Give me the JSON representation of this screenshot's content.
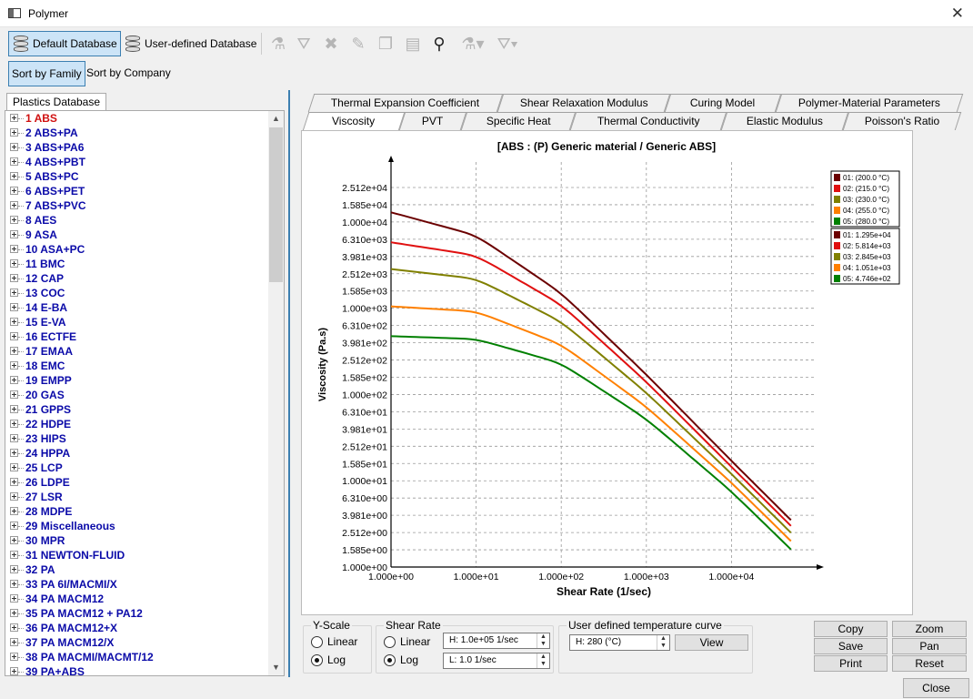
{
  "window": {
    "title": "Polymer"
  },
  "toolbar": {
    "default_db_label": "Default Database",
    "user_db_label": "User-defined Database"
  },
  "sort": {
    "by_family": "Sort by Family",
    "by_company": "Sort by Company"
  },
  "left_panel": {
    "tab_label": "Plastics Database",
    "items": [
      {
        "no": "1",
        "name": "ABS"
      },
      {
        "no": "2",
        "name": "ABS+PA"
      },
      {
        "no": "3",
        "name": "ABS+PA6"
      },
      {
        "no": "4",
        "name": "ABS+PBT"
      },
      {
        "no": "5",
        "name": "ABS+PC"
      },
      {
        "no": "6",
        "name": "ABS+PET"
      },
      {
        "no": "7",
        "name": "ABS+PVC"
      },
      {
        "no": "8",
        "name": "AES"
      },
      {
        "no": "9",
        "name": "ASA"
      },
      {
        "no": "10",
        "name": "ASA+PC"
      },
      {
        "no": "11",
        "name": "BMC"
      },
      {
        "no": "12",
        "name": "CAP"
      },
      {
        "no": "13",
        "name": "COC"
      },
      {
        "no": "14",
        "name": "E-BA"
      },
      {
        "no": "15",
        "name": "E-VA"
      },
      {
        "no": "16",
        "name": "ECTFE"
      },
      {
        "no": "17",
        "name": "EMAA"
      },
      {
        "no": "18",
        "name": "EMC"
      },
      {
        "no": "19",
        "name": "EMPP"
      },
      {
        "no": "20",
        "name": "GAS"
      },
      {
        "no": "21",
        "name": "GPPS"
      },
      {
        "no": "22",
        "name": "HDPE"
      },
      {
        "no": "23",
        "name": "HIPS"
      },
      {
        "no": "24",
        "name": "HPPA"
      },
      {
        "no": "25",
        "name": "LCP"
      },
      {
        "no": "26",
        "name": "LDPE"
      },
      {
        "no": "27",
        "name": "LSR"
      },
      {
        "no": "28",
        "name": "MDPE"
      },
      {
        "no": "29",
        "name": "Miscellaneous"
      },
      {
        "no": "30",
        "name": "MPR"
      },
      {
        "no": "31",
        "name": "NEWTON-FLUID"
      },
      {
        "no": "32",
        "name": "PA"
      },
      {
        "no": "33",
        "name": "PA 6I/MACMI/X"
      },
      {
        "no": "34",
        "name": "PA MACM12"
      },
      {
        "no": "35",
        "name": "PA MACM12 + PA12"
      },
      {
        "no": "36",
        "name": "PA MACM12+X"
      },
      {
        "no": "37",
        "name": "PA MACM12/X"
      },
      {
        "no": "38",
        "name": "PA MACMI/MACMT/12"
      },
      {
        "no": "39",
        "name": "PA+ABS"
      }
    ]
  },
  "tabs_row1": [
    "Thermal Expansion Coefficient",
    "Shear Relaxation Modulus",
    "Curing Model",
    "Polymer-Material Parameters"
  ],
  "tabs_row2": [
    "Viscosity",
    "PVT",
    "Specific Heat",
    "Thermal Conductivity",
    "Elastic Modulus",
    "Poisson's Ratio"
  ],
  "chart_data": {
    "type": "line",
    "title": "[ABS : (P)  Generic material  / Generic ABS]",
    "xlabel": "Shear Rate (1/sec)",
    "ylabel": "Viscosity (Pa.s)",
    "x_scale": "log",
    "y_scale": "log",
    "xlim": [
      1,
      100000
    ],
    "ylim": [
      1,
      25120
    ],
    "x_ticks": [
      "1.000e+00",
      "1.000e+01",
      "1.000e+02",
      "1.000e+03",
      "1.000e+04"
    ],
    "y_ticks": [
      "1.000e+00",
      "1.585e+00",
      "2.512e+00",
      "3.981e+00",
      "6.310e+00",
      "1.000e+01",
      "1.585e+01",
      "2.512e+01",
      "3.981e+01",
      "6.310e+01",
      "1.000e+02",
      "1.585e+02",
      "2.512e+02",
      "3.981e+02",
      "6.310e+02",
      "1.000e+03",
      "1.585e+03",
      "2.512e+03",
      "3.981e+03",
      "6.310e+03",
      "1.000e+04",
      "1.585e+04",
      "2.512e+04"
    ],
    "grid": true,
    "legend_position": "top-right",
    "x": [
      1,
      10,
      100,
      1000,
      10000,
      50000
    ],
    "series": [
      {
        "name": "01: (200.0 °C)",
        "color": "#6b0000",
        "zero_shear": "01: 1.295e+04",
        "values": [
          12950,
          7000,
          1500,
          170,
          17,
          3.5
        ]
      },
      {
        "name": "02: (215.0 °C)",
        "color": "#e01010",
        "zero_shear": "02: 5.814e+03",
        "values": [
          5814,
          4100,
          1100,
          140,
          14.5,
          3.0
        ]
      },
      {
        "name": "03: (230.0 °C)",
        "color": "#808000",
        "zero_shear": "03: 2.845e+03",
        "values": [
          2845,
          2200,
          700,
          105,
          12,
          2.5
        ]
      },
      {
        "name": "04: (255.0 °C)",
        "color": "#ff8000",
        "zero_shear": "04: 1.051e+03",
        "values": [
          1051,
          920,
          380,
          72,
          9.5,
          2.0
        ]
      },
      {
        "name": "05: (280.0 °C)",
        "color": "#008000",
        "zero_shear": "05: 4.746e+02",
        "values": [
          474.6,
          440,
          230,
          52,
          7.5,
          1.6
        ]
      }
    ]
  },
  "controls": {
    "yscale": {
      "legend": "Y-Scale",
      "linear": "Linear",
      "log": "Log"
    },
    "shear": {
      "legend": "Shear Rate",
      "linear": "Linear",
      "log": "Log",
      "high": "H: 1.0e+05 1/sec",
      "low": "L: 1.0 1/sec"
    },
    "temp": {
      "legend": "User defined temperature curve",
      "value": "H: 280 (°C)",
      "view": "View"
    }
  },
  "buttons": {
    "copy": "Copy",
    "zoom": "Zoom",
    "save": "Save",
    "pan": "Pan",
    "print": "Print",
    "reset": "Reset",
    "close": "Close"
  }
}
